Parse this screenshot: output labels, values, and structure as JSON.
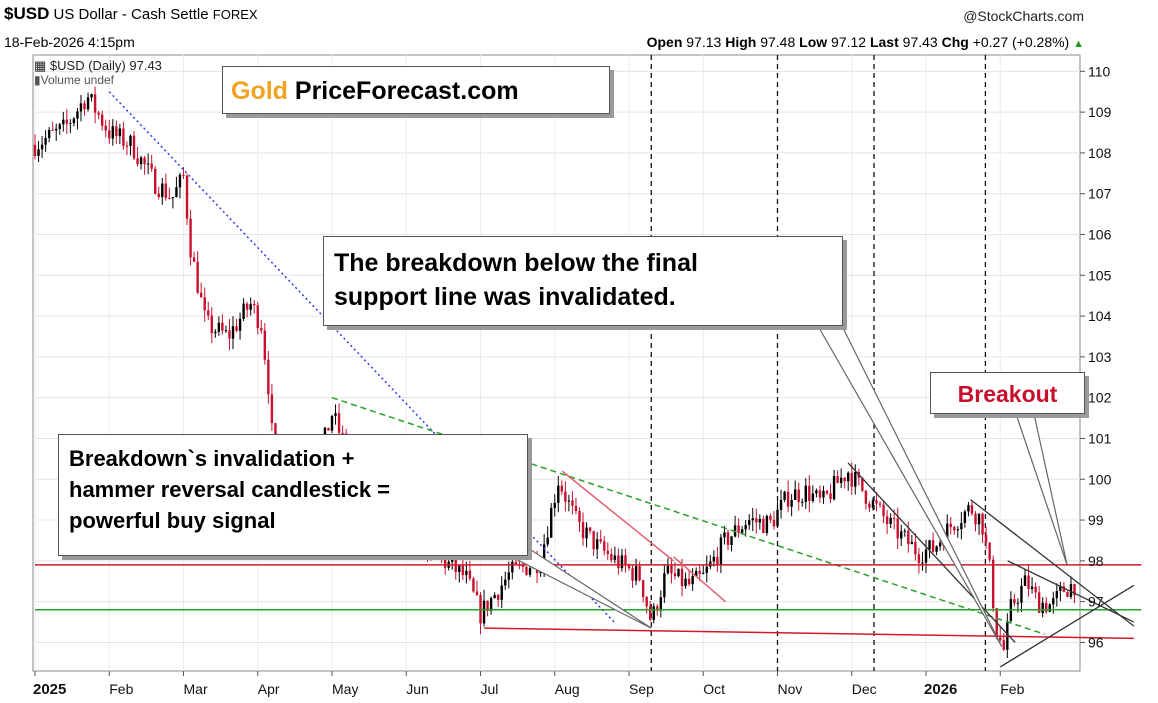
{
  "header": {
    "symbol": "$USD",
    "name": "US Dollar - Cash Settle",
    "exchange": "FOREX",
    "credit": "@StockCharts.com",
    "date": "18-Feb-2026 4:15pm",
    "open_label": "Open",
    "open": "97.13",
    "high_label": "High",
    "high": "97.48",
    "low_label": "Low",
    "low": "97.12",
    "last_label": "Last",
    "last": "97.43",
    "chg_label": "Chg",
    "chg": "+0.27 (+0.28%)"
  },
  "legend": {
    "series": "$USD (Daily) 97.43",
    "volume": "Volume undef"
  },
  "logo": {
    "gold": "Gold",
    "rest": "PriceForecast.com"
  },
  "annotations": {
    "breakdown_line1": "The breakdown below the final",
    "breakdown_line2": "support line was invalidated.",
    "signal_line1": "Breakdown`s invalidation +",
    "signal_line2": "hammer reversal candlestick =",
    "signal_line3": "powerful buy signal",
    "breakout": "Breakout"
  },
  "colors": {
    "up": "#000000",
    "down": "#c8102e",
    "green_line": "#1a9a1a",
    "red_line": "#d01a2a",
    "blue_trend": "#2a3cf0",
    "green_trend": "#2aa02a",
    "brand_orange": "#f0a320"
  },
  "chart_data": {
    "type": "candlestick",
    "title": "$USD US Dollar - Cash Settle FOREX (Daily)",
    "ylim": [
      95.3,
      110.4
    ],
    "y_ticks": [
      96,
      97,
      98,
      99,
      100,
      101,
      102,
      103,
      104,
      105,
      106,
      107,
      108,
      109,
      110
    ],
    "x_labels": [
      {
        "label": "2025",
        "t": 0.0,
        "bold": true
      },
      {
        "label": "Feb",
        "t": 1.0
      },
      {
        "label": "Mar",
        "t": 2.0
      },
      {
        "label": "Apr",
        "t": 3.0
      },
      {
        "label": "May",
        "t": 4.0
      },
      {
        "label": "Jun",
        "t": 5.0
      },
      {
        "label": "Jul",
        "t": 6.0
      },
      {
        "label": "Aug",
        "t": 7.0
      },
      {
        "label": "Sep",
        "t": 8.0
      },
      {
        "label": "Oct",
        "t": 9.0
      },
      {
        "label": "Nov",
        "t": 10.0
      },
      {
        "label": "Dec",
        "t": 11.0
      },
      {
        "label": "2026",
        "t": 12.0,
        "bold": true
      },
      {
        "label": "Feb",
        "t": 13.0
      }
    ],
    "price_path": [
      [
        0.0,
        108.2
      ],
      [
        0.4,
        108.6
      ],
      [
        0.7,
        109.4
      ],
      [
        1.0,
        108.5
      ],
      [
        1.3,
        108.2
      ],
      [
        1.6,
        107.3
      ],
      [
        1.85,
        106.9
      ],
      [
        2.0,
        107.4
      ],
      [
        2.1,
        105.6
      ],
      [
        2.3,
        103.8
      ],
      [
        2.6,
        103.5
      ],
      [
        2.9,
        104.3
      ],
      [
        3.05,
        103.8
      ],
      [
        3.15,
        102.2
      ],
      [
        3.25,
        99.6
      ],
      [
        3.5,
        99.3
      ],
      [
        3.75,
        100.0
      ],
      [
        4.0,
        101.6
      ],
      [
        4.2,
        100.7
      ],
      [
        4.5,
        99.5
      ],
      [
        4.8,
        99.0
      ],
      [
        5.1,
        98.7
      ],
      [
        5.5,
        98.0
      ],
      [
        5.8,
        97.6
      ],
      [
        6.0,
        96.7
      ],
      [
        6.2,
        97.2
      ],
      [
        6.4,
        97.7
      ],
      [
        6.8,
        98.0
      ],
      [
        7.05,
        100.0
      ],
      [
        7.3,
        98.9
      ],
      [
        7.6,
        98.3
      ],
      [
        7.9,
        97.9
      ],
      [
        8.15,
        97.6
      ],
      [
        8.3,
        96.5
      ],
      [
        8.5,
        97.7
      ],
      [
        8.8,
        97.4
      ],
      [
        9.0,
        97.6
      ],
      [
        9.3,
        98.5
      ],
      [
        9.6,
        99.0
      ],
      [
        9.9,
        98.9
      ],
      [
        10.15,
        99.6
      ],
      [
        10.4,
        99.7
      ],
      [
        10.6,
        99.4
      ],
      [
        10.8,
        99.9
      ],
      [
        10.95,
        100.2
      ],
      [
        11.2,
        99.6
      ],
      [
        11.5,
        98.9
      ],
      [
        11.9,
        98.2
      ],
      [
        12.1,
        98.3
      ],
      [
        12.35,
        98.9
      ],
      [
        12.6,
        99.3
      ],
      [
        12.75,
        99.0
      ],
      [
        12.85,
        97.9
      ],
      [
        12.95,
        96.3
      ],
      [
        13.05,
        95.8
      ],
      [
        13.15,
        96.9
      ],
      [
        13.35,
        97.5
      ],
      [
        13.5,
        97.0
      ],
      [
        13.7,
        96.9
      ],
      [
        13.85,
        97.3
      ],
      [
        14.0,
        97.43
      ]
    ],
    "trend_lines": [
      {
        "name": "blue-descending-trendline",
        "style": "dotted",
        "color": "blue",
        "points": [
          [
            1.0,
            109.5
          ],
          [
            7.8,
            96.5
          ]
        ]
      },
      {
        "name": "green-descending-trendline",
        "style": "dashed",
        "color": "green",
        "points": [
          [
            4.0,
            102.0
          ],
          [
            13.6,
            96.2
          ]
        ]
      },
      {
        "name": "red-support-line",
        "style": "solid",
        "color": "red",
        "points": [
          [
            6.05,
            96.35
          ],
          [
            14.8,
            96.1
          ]
        ]
      },
      {
        "name": "red-horizontal-resistance",
        "style": "solid",
        "color": "red",
        "points": [
          [
            0.0,
            97.9
          ],
          [
            14.9,
            97.9
          ]
        ]
      },
      {
        "name": "green-horizontal-support",
        "style": "solid",
        "color": "green",
        "points": [
          [
            0.0,
            96.8
          ],
          [
            14.9,
            96.8
          ]
        ]
      },
      {
        "name": "pink-flag-line-upper",
        "style": "solid",
        "color": "pink",
        "points": [
          [
            7.1,
            100.2
          ],
          [
            8.6,
            98.0
          ]
        ]
      },
      {
        "name": "pink-flag-line-lower",
        "style": "solid",
        "color": "pink",
        "points": [
          [
            8.6,
            98.1
          ],
          [
            9.3,
            97.0
          ]
        ]
      },
      {
        "name": "channel-upper-line",
        "style": "solid",
        "color": "black",
        "points": [
          [
            10.95,
            100.4
          ],
          [
            13.2,
            96.0
          ]
        ]
      },
      {
        "name": "channel-lower-line",
        "style": "solid",
        "color": "black",
        "points": [
          [
            12.6,
            99.5
          ],
          [
            14.8,
            96.4
          ]
        ]
      },
      {
        "name": "breakout-wedge-upper",
        "style": "solid",
        "color": "black",
        "points": [
          [
            13.0,
            95.4
          ],
          [
            14.8,
            97.4
          ]
        ]
      },
      {
        "name": "breakout-wedge-lower",
        "style": "solid",
        "color": "black",
        "points": [
          [
            13.1,
            98.0
          ],
          [
            14.8,
            96.5
          ]
        ]
      }
    ],
    "vertical_markers": [
      {
        "name": "vertical-marker-sep",
        "t": 8.3,
        "style": "dashed"
      },
      {
        "name": "vertical-marker-oct",
        "t": 10.0,
        "style": "dashed"
      },
      {
        "name": "vertical-marker-dec",
        "t": 11.3,
        "style": "dashed"
      },
      {
        "name": "vertical-marker-jan",
        "t": 12.8,
        "style": "dashed"
      }
    ]
  }
}
